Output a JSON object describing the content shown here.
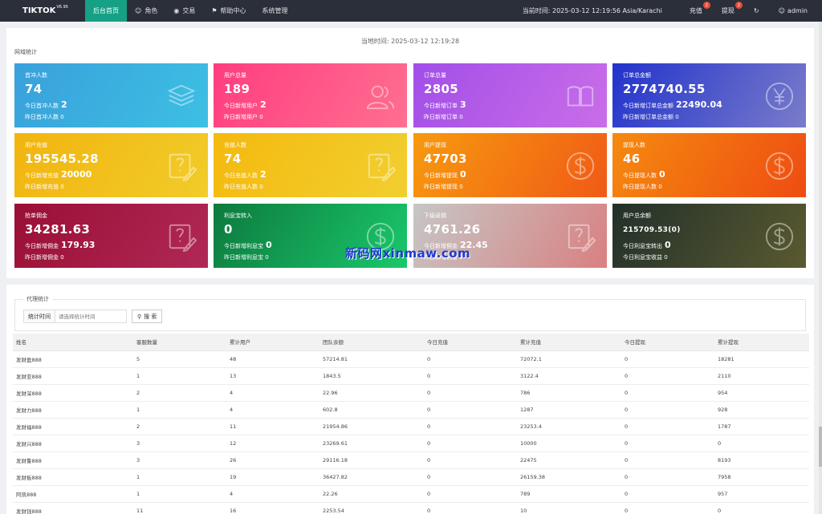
{
  "topbar": {
    "brand": "TIKTOK",
    "version": "V6.95",
    "nav": [
      {
        "label": "后台首页",
        "icon": "",
        "active": true
      },
      {
        "label": "角色",
        "icon": "user-icon"
      },
      {
        "label": "交易",
        "icon": "money-icon"
      },
      {
        "label": "帮助中心",
        "icon": "flag-icon"
      },
      {
        "label": "系统管理",
        "icon": ""
      }
    ],
    "time_text": "当前时间: 2025-03-12 12:19:56  Asia/Karachi",
    "recharge_label": "充值",
    "recharge_badge": "2",
    "withdraw_label": "提现",
    "withdraw_badge": "2",
    "user": "admin"
  },
  "page_time": "当地时间:  2025-03-12 12:19:28",
  "section_title": "网域统计",
  "cards": [
    {
      "title": "首冲人数",
      "value": "74",
      "line1_label": "今日首冲人数",
      "line1_value": "2",
      "line2": "昨日首冲人数 0",
      "icon": "layers-icon",
      "grad": "g1"
    },
    {
      "title": "用户总量",
      "value": "189",
      "line1_label": "今日新增用户",
      "line1_value": "2",
      "line2": "昨日新增用户 0",
      "icon": "users-icon",
      "grad": "g2"
    },
    {
      "title": "订单总量",
      "value": "2805",
      "line1_label": "今日新增订单",
      "line1_value": "3",
      "line2": "昨日新增订单 0",
      "icon": "book-icon",
      "grad": "g3"
    },
    {
      "title": "订单总金额",
      "value": "2774740.55",
      "line1_label": "今日新增订单总金额",
      "line1_value": "22490.04",
      "line2": "昨日新增订单总金额 0",
      "icon": "yen-icon",
      "grad": "g4"
    },
    {
      "title": "用户充值",
      "value": "195545.28",
      "line1_label": "今日新增充值",
      "line1_value": "20000",
      "line2": "昨日新增充值 0",
      "icon": "edit-icon",
      "grad": "g5"
    },
    {
      "title": "充值人数",
      "value": "74",
      "line1_label": "今日充值人数",
      "line1_value": "2",
      "line2": "昨日充值人数 0",
      "icon": "edit-icon",
      "grad": "g6"
    },
    {
      "title": "用户提现",
      "value": "47703",
      "line1_label": "今日新增提现",
      "line1_value": "0",
      "line2": "昨日新增提现 0",
      "icon": "dollar-icon",
      "grad": "g7"
    },
    {
      "title": "提现人数",
      "value": "46",
      "line1_label": "今日提现人数",
      "line1_value": "0",
      "line2": "昨日提现人数 0",
      "icon": "dollar-icon",
      "grad": "g8"
    },
    {
      "title": "抢单佣金",
      "value": "34281.63",
      "line1_label": "今日新增佣金",
      "line1_value": "179.93",
      "line2": "昨日新增佣金 0",
      "icon": "edit-icon",
      "grad": "g9"
    },
    {
      "title": "利息宝转入",
      "value": "0",
      "line1_label": "今日新增利息宝",
      "line1_value": "0",
      "line2": "昨日新增利息宝 0",
      "icon": "dollar-icon",
      "grad": "g10"
    },
    {
      "title": "下级返佣",
      "value": "4761.26",
      "line1_label": "今日新增佣金",
      "line1_value": "22.45",
      "line2": "昨日新增佣金 0",
      "icon": "edit-icon",
      "grad": "g11"
    },
    {
      "title": "用户总余额",
      "value": "215709.53(0)",
      "line1_label": "今日利息宝转出",
      "line1_value": "0",
      "line2": "今日利息宝收益 0",
      "icon": "dollar-icon",
      "grad": "g12",
      "small": true
    }
  ],
  "watermark": "新码网xinmaw.com",
  "agent": {
    "legend": "代理统计",
    "search_label": "统计时间",
    "search_placeholder": "请选择统计时间",
    "search_button": "搜 索",
    "columns": [
      "姓名",
      "客服数量",
      "累计用户",
      "团队余额",
      "今日充值",
      "累计充值",
      "今日提现",
      "累计提现"
    ],
    "rows": [
      [
        "发财盈888",
        "5",
        "48",
        "57214.81",
        "0",
        "72072.1",
        "0",
        "18281"
      ],
      [
        "发财亚888",
        "1",
        "13",
        "1843.5",
        "0",
        "3122.4",
        "0",
        "2110"
      ],
      [
        "发财深888",
        "2",
        "4",
        "22.96",
        "0",
        "786",
        "0",
        "954"
      ],
      [
        "发财力888",
        "1",
        "4",
        "602.8",
        "0",
        "1287",
        "0",
        "928"
      ],
      [
        "发财福888",
        "2",
        "11",
        "21954.86",
        "0",
        "23253.4",
        "0",
        "1787"
      ],
      [
        "发财兴888",
        "3",
        "12",
        "23269.61",
        "0",
        "10000",
        "0",
        "0"
      ],
      [
        "发财鲁888",
        "3",
        "26",
        "29116.18",
        "0",
        "22475",
        "0",
        "8193"
      ],
      [
        "发财板888",
        "1",
        "19",
        "36427.82",
        "0",
        "26159.38",
        "0",
        "7958"
      ],
      [
        "阿凯888",
        "1",
        "4",
        "22.26",
        "0",
        "789",
        "0",
        "957"
      ],
      [
        "发财钱888",
        "11",
        "16",
        "2253.54",
        "0",
        "10",
        "0",
        "0"
      ]
    ]
  }
}
